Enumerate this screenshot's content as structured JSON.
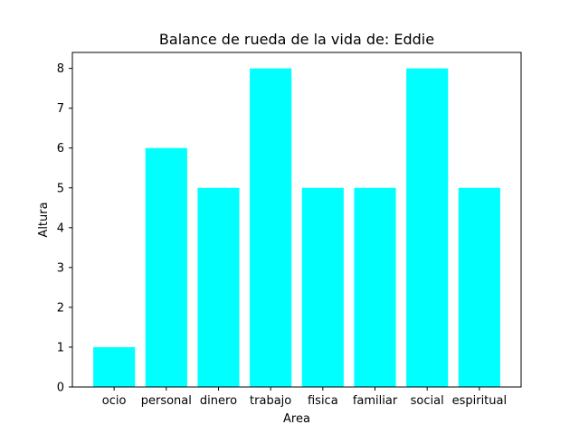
{
  "chart_data": {
    "type": "bar",
    "title": "Balance de rueda de la vida de: Eddie",
    "xlabel": "Area",
    "ylabel": "Altura",
    "categories": [
      "ocio",
      "personal",
      "dinero",
      "trabajo",
      "fisica",
      "familiar",
      "social",
      "espiritual"
    ],
    "values": [
      1,
      6,
      5,
      8,
      5,
      5,
      8,
      5
    ],
    "ylim": [
      0,
      8.4
    ],
    "yticks": [
      "0",
      "1",
      "2",
      "3",
      "4",
      "5",
      "6",
      "7",
      "8"
    ],
    "bar_color": "#00ffff",
    "grid": false,
    "legend": "none"
  }
}
